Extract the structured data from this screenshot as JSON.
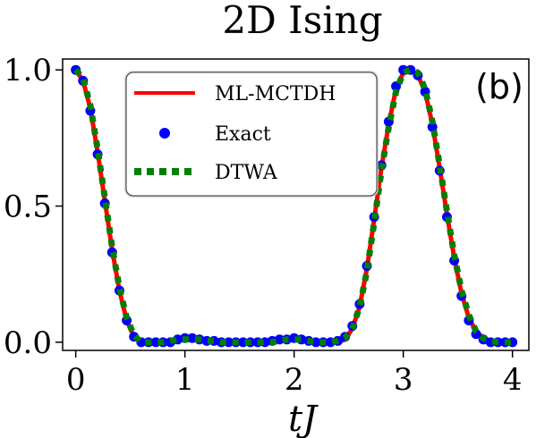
{
  "chart_data": {
    "type": "line",
    "title": "2D Ising",
    "panel_label": "(b)",
    "xlabel": "tJ",
    "ylabel": "",
    "xlim": [
      -0.12,
      4.15
    ],
    "ylim": [
      -0.03,
      1.04
    ],
    "xticks": [
      0,
      1,
      2,
      3,
      4
    ],
    "xtick_labels": [
      "0",
      "1",
      "2",
      "3",
      "4"
    ],
    "yticks": [
      0.0,
      0.5,
      1.0
    ],
    "ytick_labels": [
      "0.0",
      "0.5",
      "1.0"
    ],
    "grid": false,
    "legend_position": "upper-left",
    "colors": {
      "ml_mctdh": "#ff0000",
      "exact": "#0000ff",
      "dtwa": "#008000"
    },
    "x": [
      0.0,
      0.0667,
      0.1333,
      0.2,
      0.2667,
      0.3333,
      0.4,
      0.4667,
      0.5333,
      0.6,
      0.6667,
      0.7333,
      0.8,
      0.8667,
      0.9333,
      1.0,
      1.0667,
      1.1333,
      1.2,
      1.2667,
      1.3333,
      1.4,
      1.4667,
      1.5333,
      1.6,
      1.6667,
      1.7333,
      1.8,
      1.8667,
      1.9333,
      2.0,
      2.0667,
      2.1333,
      2.2,
      2.2667,
      2.3333,
      2.4,
      2.4667,
      2.5333,
      2.6,
      2.6667,
      2.7333,
      2.8,
      2.8667,
      2.9333,
      3.0,
      3.0667,
      3.1333,
      3.2,
      3.2667,
      3.3333,
      3.4,
      3.4667,
      3.5333,
      3.6,
      3.6667,
      3.7333,
      3.8,
      3.8667,
      3.9333,
      4.0
    ],
    "series": [
      {
        "name": "ML-MCTDH",
        "style": "line",
        "values": [
          1.0,
          0.96,
          0.86,
          0.7,
          0.52,
          0.34,
          0.19,
          0.08,
          0.02,
          0.0,
          0.0,
          0.0,
          0.0,
          0.0,
          0.01,
          0.01,
          0.015,
          0.01,
          0.01,
          0.005,
          0.0,
          0.0,
          0.0,
          0.0,
          0.0,
          0.0,
          0.0,
          0.0,
          0.005,
          0.01,
          0.015,
          0.01,
          0.005,
          0.0,
          0.0,
          0.0,
          0.0,
          0.01,
          0.05,
          0.13,
          0.27,
          0.45,
          0.64,
          0.8,
          0.93,
          0.99,
          1.0,
          0.98,
          0.92,
          0.8,
          0.64,
          0.47,
          0.31,
          0.18,
          0.09,
          0.04,
          0.015,
          0.005,
          0.0,
          0.0,
          0.0
        ]
      },
      {
        "name": "Exact",
        "style": "dots",
        "values": [
          1.0,
          0.96,
          0.85,
          0.69,
          0.51,
          0.33,
          0.19,
          0.08,
          0.02,
          0.0,
          0.0,
          0.0,
          0.0,
          0.0,
          0.01,
          0.015,
          0.015,
          0.01,
          0.005,
          0.005,
          0.0,
          0.0,
          0.0,
          0.0,
          0.0,
          0.0,
          0.0,
          0.005,
          0.01,
          0.01,
          0.015,
          0.01,
          0.005,
          0.0,
          0.0,
          0.0,
          0.005,
          0.02,
          0.06,
          0.14,
          0.28,
          0.46,
          0.65,
          0.81,
          0.94,
          1.0,
          1.0,
          0.98,
          0.92,
          0.79,
          0.63,
          0.46,
          0.3,
          0.17,
          0.08,
          0.03,
          0.01,
          0.0,
          0.0,
          0.0,
          0.0
        ]
      },
      {
        "name": "DTWA",
        "style": "dotted",
        "values": [
          1.0,
          0.97,
          0.87,
          0.71,
          0.53,
          0.35,
          0.2,
          0.09,
          0.025,
          0.0,
          0.0,
          0.0,
          0.0,
          0.005,
          0.01,
          0.01,
          0.01,
          0.01,
          0.005,
          0.005,
          0.0,
          0.0,
          0.0,
          0.0,
          0.0,
          0.0,
          0.0,
          0.0,
          0.005,
          0.01,
          0.01,
          0.01,
          0.005,
          0.0,
          0.0,
          0.0,
          0.005,
          0.015,
          0.05,
          0.13,
          0.26,
          0.44,
          0.63,
          0.79,
          0.92,
          0.99,
          1.0,
          0.99,
          0.93,
          0.81,
          0.65,
          0.48,
          0.32,
          0.19,
          0.1,
          0.04,
          0.015,
          0.005,
          0.0,
          0.0,
          0.0
        ]
      }
    ]
  }
}
